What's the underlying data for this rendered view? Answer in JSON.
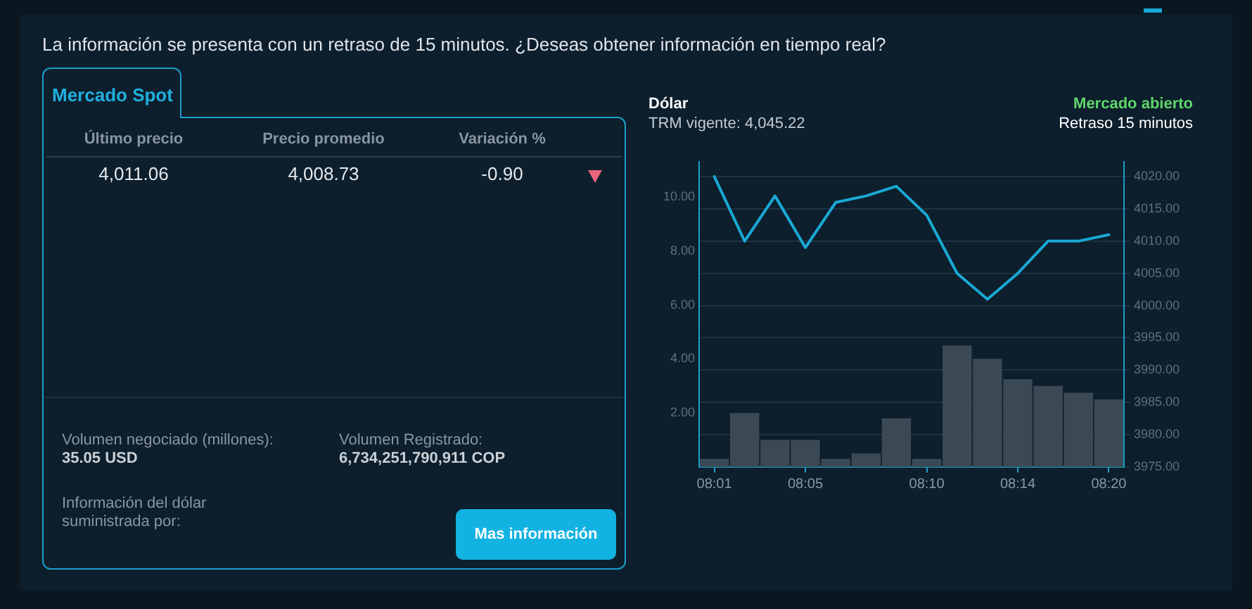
{
  "chart_data": [
    {
      "type": "other",
      "title": "Mercado Spot",
      "categories": [
        "Último precio",
        "Precio promedio",
        "Variación %"
      ],
      "values": [
        4011.06,
        4008.73,
        -0.9
      ],
      "value_labels": [
        "4,011.06",
        "4,008.73",
        "-0.90"
      ],
      "annotations": [
        "La información se presenta con un retraso de 15 minutos. ¿Deseas obtener información en tiempo real?",
        "Volumen negociado (millones):",
        "35.05 USD",
        "Volumen Registrado:",
        "6,734,251,790,911 COP",
        "Información del dólar suministrada por:",
        "Mas información"
      ]
    },
    {
      "type": "bar",
      "title": "Dólar",
      "subtitle": "TRM vigente: 4,045.22",
      "annotations": [
        "Mercado abierto",
        "Retraso 15 minutos"
      ],
      "categories": [
        "08:01",
        null,
        null,
        "08:05",
        null,
        null,
        null,
        "08:10",
        null,
        null,
        "08:14",
        null,
        null,
        "08:20"
      ],
      "series": [
        {
          "type": "bar",
          "color": "#3b4955",
          "values": [
            0.3,
            2,
            1,
            1,
            0.3,
            0.5,
            1.8,
            0.3,
            4.5,
            4,
            3.25,
            3,
            2.75,
            2.5
          ]
        },
        {
          "type": "line",
          "axis": "y2",
          "color": "#1aa8d4",
          "values": [
            4020,
            4010,
            4017,
            4009,
            4016,
            4017,
            4018.5,
            4014,
            4005,
            4001,
            4005,
            4010,
            4010,
            4011
          ]
        }
      ],
      "ylim": [
        0,
        11.3
      ],
      "yticks": [
        {
          "value": 2,
          "label": "2.00"
        },
        {
          "value": 4,
          "label": "4.00"
        },
        {
          "value": 6,
          "label": "6.00"
        },
        {
          "value": 8,
          "label": "8.00"
        },
        {
          "value": 10,
          "label": "10.00"
        }
      ],
      "y2lim": [
        3975,
        4022.3
      ],
      "y2ticks": [
        {
          "value": 3975,
          "label": "3975.00"
        },
        {
          "value": 3980,
          "label": "3980.00"
        },
        {
          "value": 3985,
          "label": "3985.00"
        },
        {
          "value": 3990,
          "label": "3990.00"
        },
        {
          "value": 3995,
          "label": "3995.00"
        },
        {
          "value": 4000,
          "label": "4000.00"
        },
        {
          "value": 4005,
          "label": "4005.00"
        },
        {
          "value": 4010,
          "label": "4010.00"
        },
        {
          "value": 4015,
          "label": "4015.00"
        },
        {
          "value": 4020,
          "label": "4020.00"
        }
      ],
      "grid": "y2",
      "marker": "none",
      "line_style": "solid"
    }
  ]
}
